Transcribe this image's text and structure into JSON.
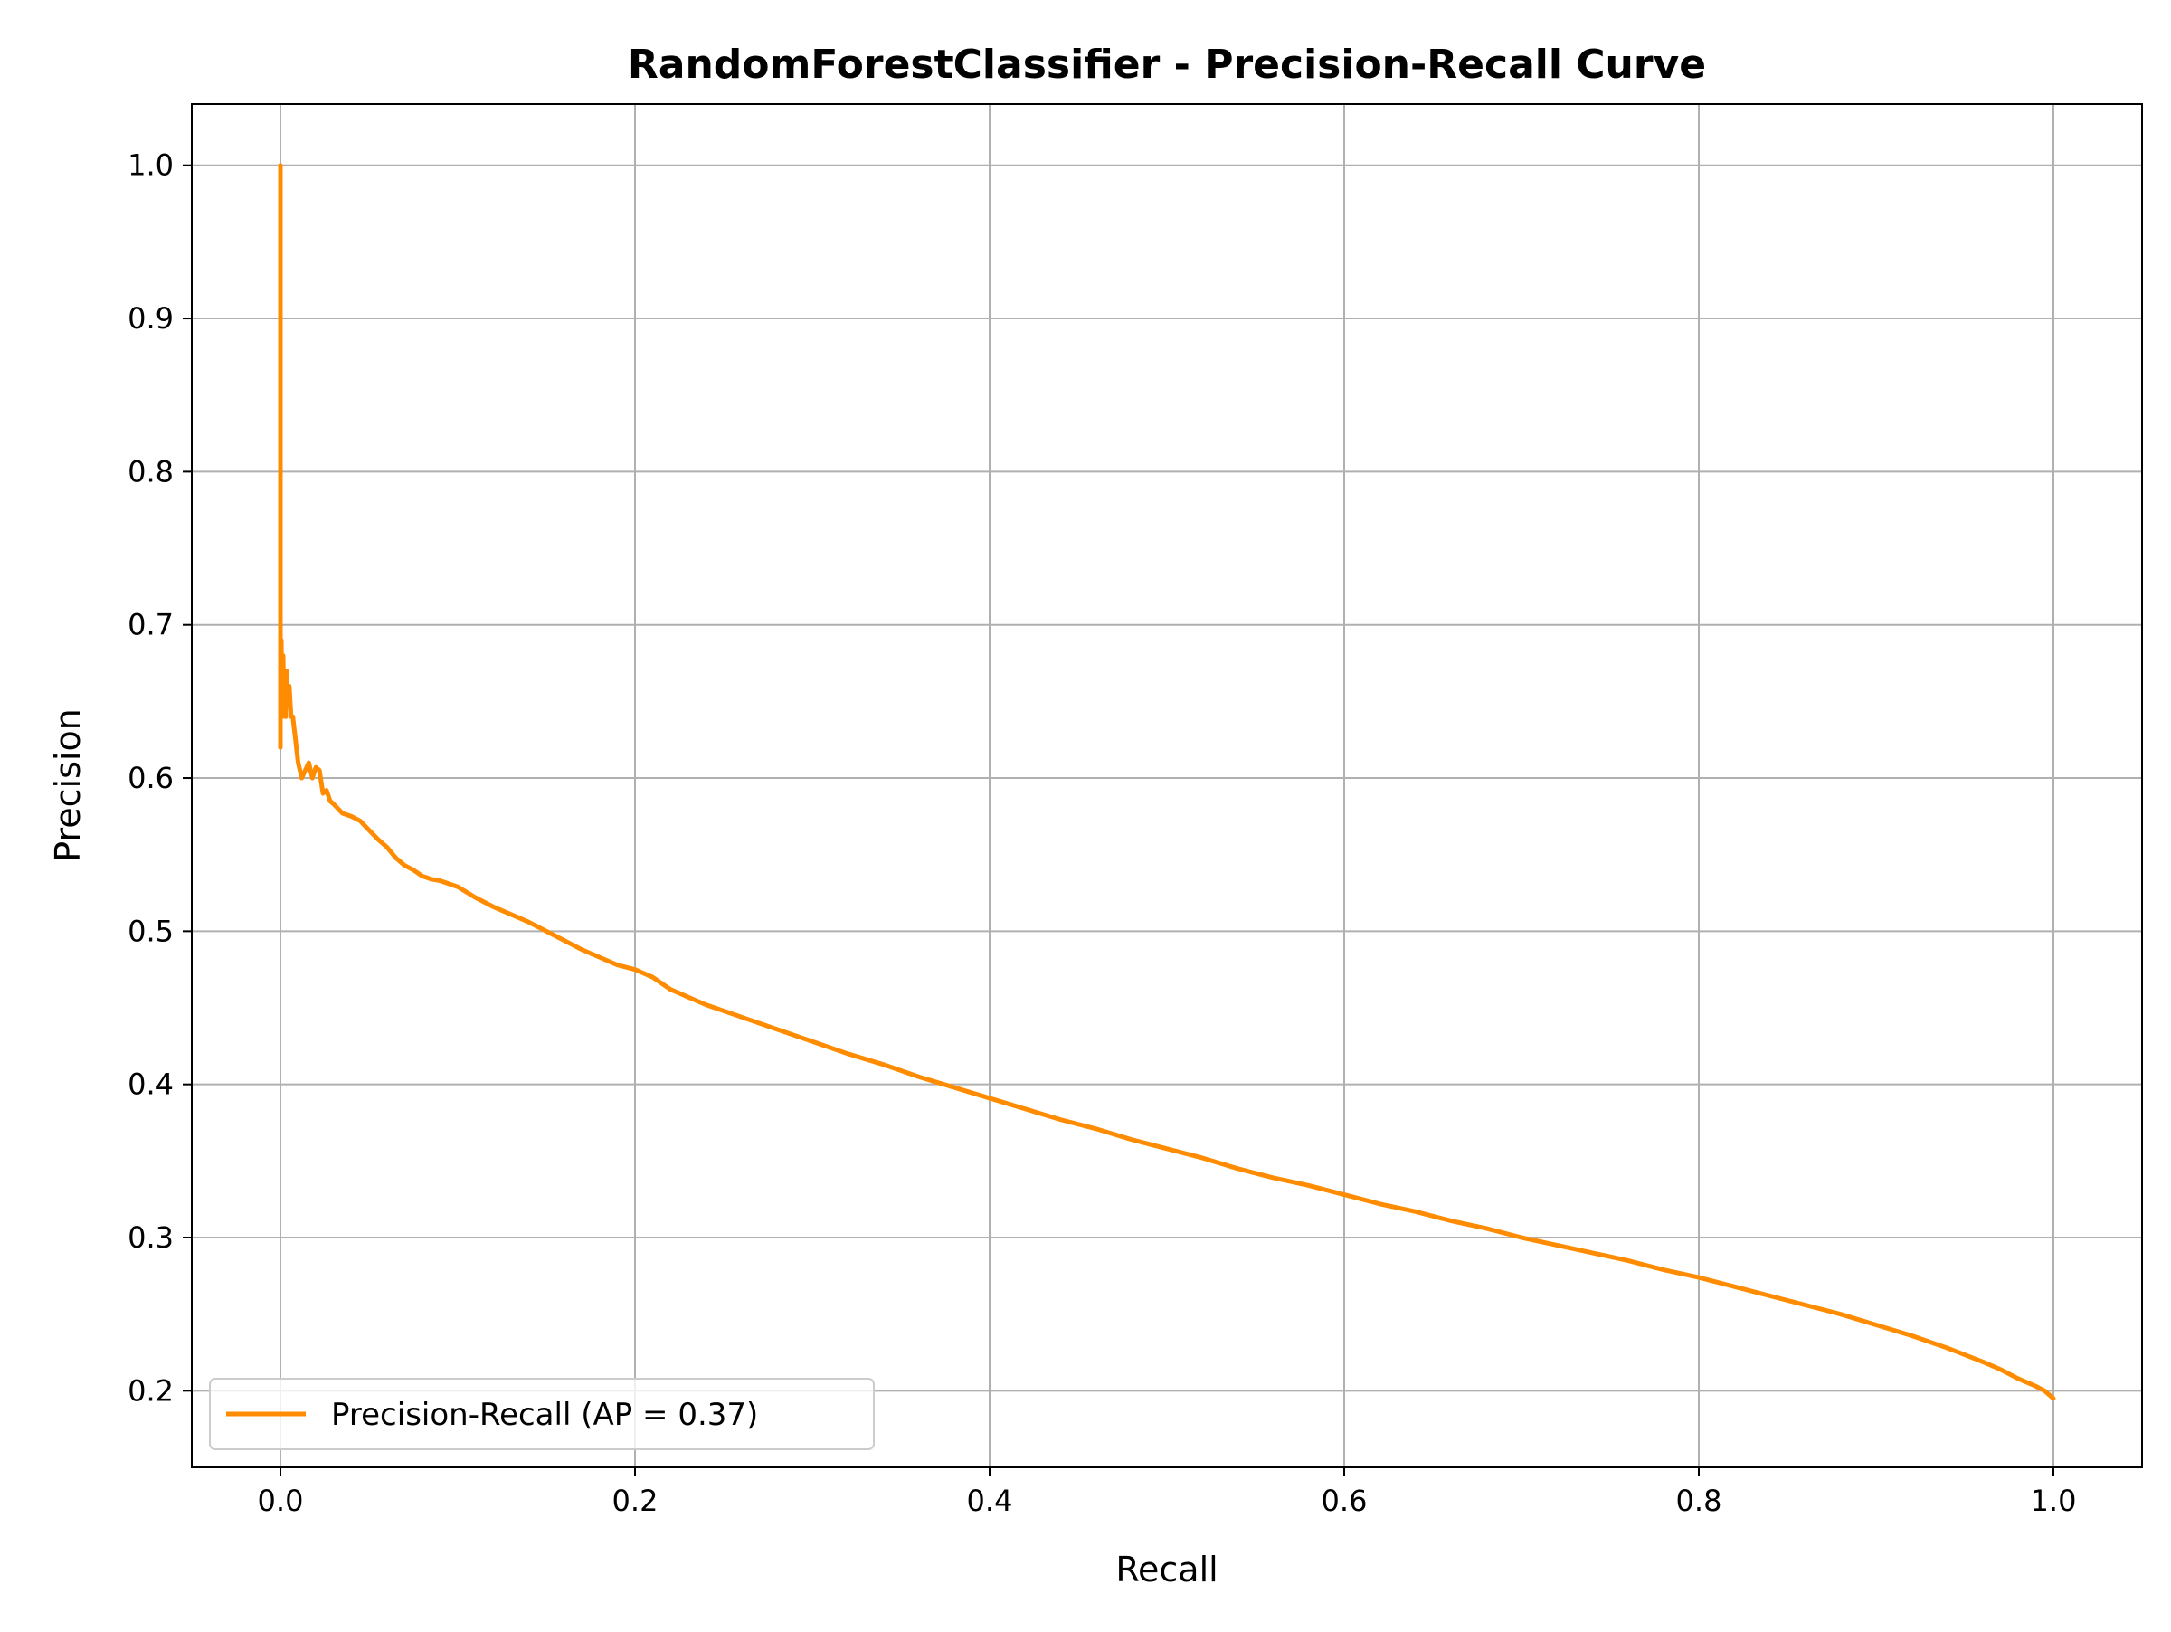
{
  "chart_data": {
    "type": "line",
    "title": "RandomForestClassifier - Precision-Recall Curve",
    "xlabel": "Recall",
    "ylabel": "Precision",
    "xlim": [
      -0.05,
      1.05
    ],
    "ylim": [
      0.15,
      1.04
    ],
    "xticks": [
      0.0,
      0.2,
      0.4,
      0.6,
      0.8,
      1.0
    ],
    "xtick_labels": [
      "0.0",
      "0.2",
      "0.4",
      "0.6",
      "0.8",
      "1.0"
    ],
    "yticks": [
      0.2,
      0.3,
      0.4,
      0.5,
      0.6,
      0.7,
      0.8,
      0.9,
      1.0
    ],
    "ytick_labels": [
      "0.2",
      "0.3",
      "0.4",
      "0.5",
      "0.6",
      "0.7",
      "0.8",
      "0.9",
      "1.0"
    ],
    "grid": true,
    "legend_position": "lower-left",
    "series": [
      {
        "name": "Precision-Recall (AP = 0.37)",
        "color": "#ff8c00",
        "x": [
          0.0,
          0.0,
          0.0,
          0.0,
          0.0,
          0.0,
          0.0005,
          0.001,
          0.0015,
          0.002,
          0.0025,
          0.003,
          0.0035,
          0.004,
          0.005,
          0.006,
          0.007,
          0.008,
          0.009,
          0.01,
          0.012,
          0.014,
          0.016,
          0.018,
          0.02,
          0.022,
          0.024,
          0.026,
          0.028,
          0.03,
          0.035,
          0.04,
          0.045,
          0.05,
          0.055,
          0.06,
          0.065,
          0.07,
          0.075,
          0.08,
          0.085,
          0.09,
          0.1,
          0.11,
          0.12,
          0.13,
          0.14,
          0.15,
          0.16,
          0.17,
          0.18,
          0.19,
          0.2,
          0.21,
          0.22,
          0.24,
          0.26,
          0.28,
          0.3,
          0.32,
          0.34,
          0.36,
          0.38,
          0.4,
          0.42,
          0.44,
          0.46,
          0.48,
          0.5,
          0.52,
          0.54,
          0.56,
          0.58,
          0.6,
          0.62,
          0.64,
          0.66,
          0.68,
          0.7,
          0.72,
          0.74,
          0.76,
          0.78,
          0.8,
          0.82,
          0.84,
          0.86,
          0.88,
          0.9,
          0.92,
          0.94,
          0.96,
          0.97,
          0.98,
          0.99,
          0.995,
          1.0
        ],
        "y": [
          1.0,
          0.9,
          0.78,
          0.7,
          0.62,
          0.66,
          0.69,
          0.64,
          0.68,
          0.65,
          0.67,
          0.64,
          0.67,
          0.65,
          0.66,
          0.64,
          0.64,
          0.63,
          0.62,
          0.61,
          0.6,
          0.605,
          0.61,
          0.6,
          0.607,
          0.605,
          0.59,
          0.592,
          0.585,
          0.583,
          0.577,
          0.575,
          0.572,
          0.566,
          0.56,
          0.555,
          0.548,
          0.543,
          0.54,
          0.536,
          0.534,
          0.533,
          0.529,
          0.522,
          0.516,
          0.511,
          0.506,
          0.5,
          0.494,
          0.488,
          0.483,
          0.478,
          0.475,
          0.47,
          0.462,
          0.452,
          0.444,
          0.436,
          0.428,
          0.42,
          0.413,
          0.405,
          0.398,
          0.391,
          0.384,
          0.377,
          0.371,
          0.364,
          0.358,
          0.352,
          0.345,
          0.339,
          0.334,
          0.328,
          0.322,
          0.317,
          0.311,
          0.306,
          0.3,
          0.295,
          0.29,
          0.285,
          0.279,
          0.274,
          0.268,
          0.262,
          0.256,
          0.25,
          0.243,
          0.236,
          0.228,
          0.219,
          0.214,
          0.208,
          0.203,
          0.2,
          0.195
        ]
      }
    ]
  }
}
